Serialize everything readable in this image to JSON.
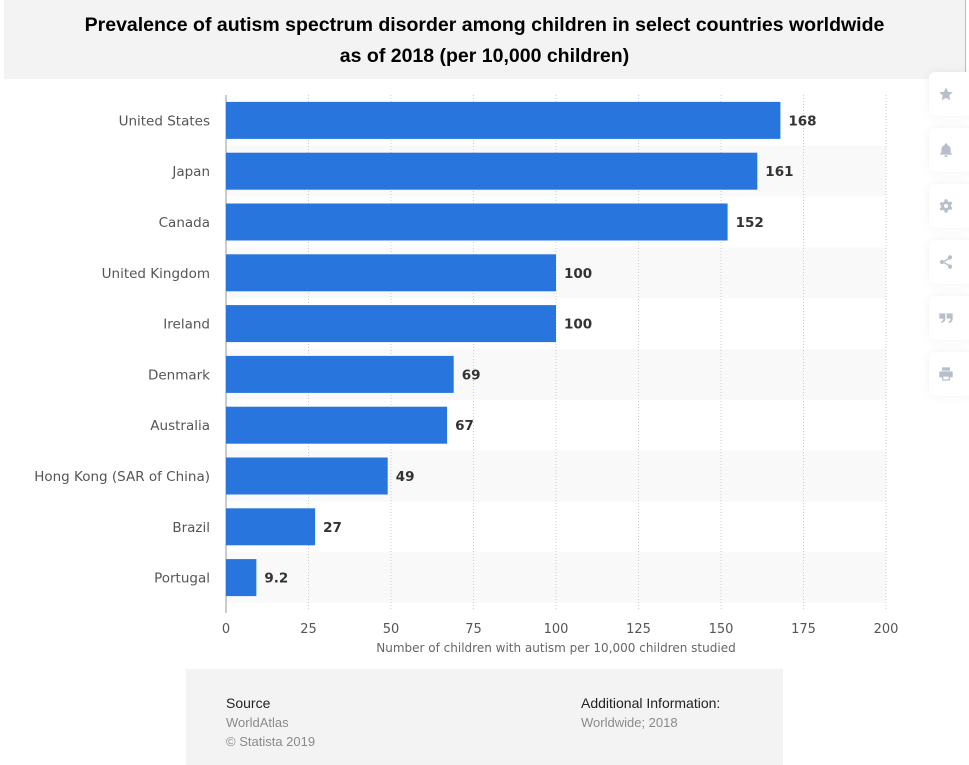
{
  "colors": {
    "bar": "#2876dd",
    "band_alt": "#f9f9f9",
    "grid": "#cccccc",
    "axis": "#999999"
  },
  "toolbar": {
    "buttons": [
      {
        "name": "favorite",
        "icon": "star-icon"
      },
      {
        "name": "notification",
        "icon": "bell-icon"
      },
      {
        "name": "settings",
        "icon": "gear-icon"
      },
      {
        "name": "share",
        "icon": "share-icon"
      },
      {
        "name": "cite",
        "icon": "quote-icon"
      },
      {
        "name": "print",
        "icon": "printer-icon"
      }
    ]
  },
  "footer": {
    "source_heading": "Source",
    "source_name": "WorldAtlas",
    "copyright": "© Statista 2019",
    "additional_heading": "Additional Information:",
    "additional_text": "Worldwide; 2018"
  },
  "chart_data": {
    "type": "bar",
    "orientation": "horizontal",
    "title": "Prevalence of autism spectrum disorder among children in select countries worldwide as of 2018 (per 10,000 children)",
    "title_lines": [
      "Prevalence of autism spectrum disorder among children in select countries worldwide",
      "as of 2018 (per 10,000 children)"
    ],
    "categories": [
      "United States",
      "Japan",
      "Canada",
      "United Kingdom",
      "Ireland",
      "Denmark",
      "Australia",
      "Hong Kong (SAR of China)",
      "Brazil",
      "Portugal"
    ],
    "values": [
      168,
      161,
      152,
      100,
      100,
      69,
      67,
      49,
      27,
      9.2
    ],
    "value_labels": [
      "168",
      "161",
      "152",
      "100",
      "100",
      "69",
      "67",
      "49",
      "27",
      "9.2"
    ],
    "xlabel": "Number of children with autism per 10,000 children studied",
    "ylabel": "",
    "xlim": [
      0,
      200
    ],
    "xticks": [
      0,
      25,
      50,
      75,
      100,
      125,
      150,
      175,
      200
    ],
    "grid": true,
    "legend": "none"
  }
}
